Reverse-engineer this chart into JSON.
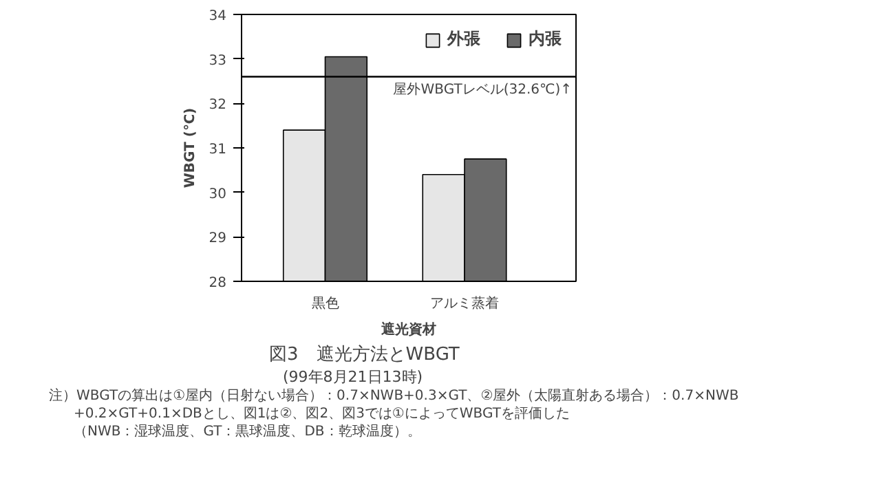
{
  "chart_data": {
    "type": "bar",
    "title": "図3　遮光方法とWBGT",
    "subtitle": "(99年8月21日13時)",
    "xlabel": "遮光資材",
    "ylabel": "WBGT (℃)",
    "categories": [
      "黒色",
      "アルミ蒸着"
    ],
    "series": [
      {
        "name": "外張",
        "color": "#e6e6e6",
        "values": [
          31.4,
          30.4
        ]
      },
      {
        "name": "内張",
        "color": "#6a6a6a",
        "values": [
          33.05,
          30.75
        ]
      }
    ],
    "ylim": [
      28,
      34
    ],
    "yticks": [
      28,
      29,
      30,
      31,
      32,
      33,
      34
    ],
    "grid": false,
    "legend": "top right",
    "ref_lines": [
      {
        "axis": "y",
        "value": 32.6,
        "label": "屋外WBGTレベル(32.6℃)↑",
        "color": "#000000"
      }
    ],
    "annotations": [
      "注）WBGTの算出は①屋内（日射ない場合）：0.7×NWB+0.3×GT、②屋外（太陽直射ある場合）：0.7×NWB",
      "+0.2×GT+0.1×DBとし、図1は②、図2、図3では①によってWBGTを評価した",
      "（NWB：湿球温度、GT：黒球温度、DB：乾球温度）。"
    ]
  }
}
